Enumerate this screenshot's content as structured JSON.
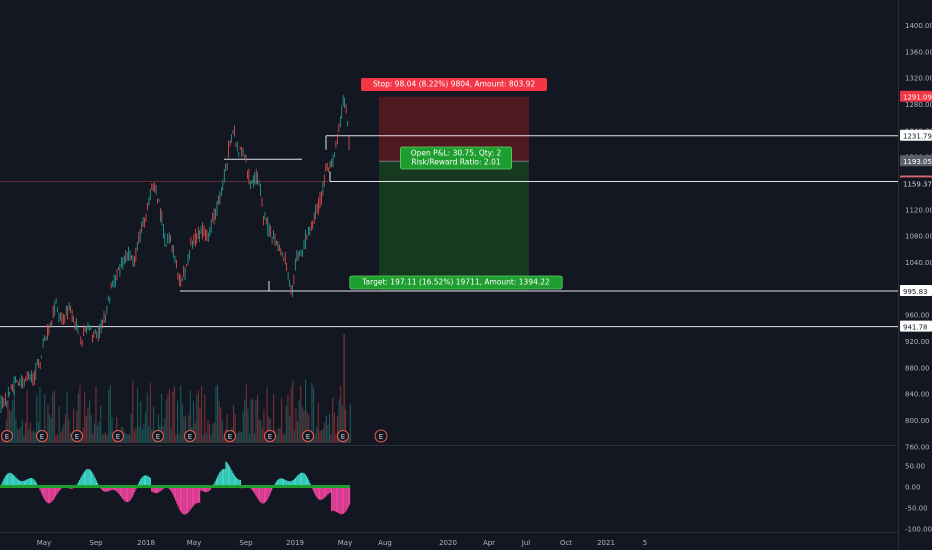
{
  "colors": {
    "background": "#131722",
    "axis_text": "#b2b5be",
    "up": "#26a69a",
    "down": "#ef5350",
    "price_line": "#e0e3eb",
    "stop_zone": "#5c1a1e",
    "target_zone": "#17401f",
    "stop_label": "#f23645",
    "target_label": "#1e9e2e",
    "osc_up": "#3bd6c6",
    "osc_down": "#e9439c",
    "osc_zero": "#1e9e2e",
    "earnings_marker": "#e35e56"
  },
  "chart_data": [
    {
      "type": "candlestick",
      "panel": "price",
      "y_axis_ticks": [
        1400,
        1360,
        1320,
        1280,
        1240,
        1200,
        1160,
        1120,
        1080,
        1040,
        1000,
        960,
        920,
        880,
        840,
        800,
        760
      ],
      "ylim": [
        740,
        1425
      ],
      "x_axis_labels": [
        "May",
        "Sep",
        "2018",
        "May",
        "Sep",
        "2019",
        "May",
        "Aug",
        "2020",
        "Apr",
        "Jul",
        "Oct",
        "2021",
        "5"
      ],
      "price_series": [
        [
          0,
          820
        ],
        [
          6,
          830
        ],
        [
          12,
          850
        ],
        [
          18,
          860
        ],
        [
          26,
          856
        ],
        [
          34,
          868
        ],
        [
          40,
          886
        ],
        [
          44,
          920
        ],
        [
          50,
          945
        ],
        [
          56,
          978
        ],
        [
          62,
          950
        ],
        [
          68,
          970
        ],
        [
          72,
          962
        ],
        [
          78,
          935
        ],
        [
          82,
          925
        ],
        [
          88,
          942
        ],
        [
          94,
          926
        ],
        [
          100,
          938
        ],
        [
          104,
          950
        ],
        [
          110,
          992
        ],
        [
          116,
          1020
        ],
        [
          122,
          1035
        ],
        [
          128,
          1052
        ],
        [
          134,
          1040
        ],
        [
          140,
          1080
        ],
        [
          146,
          1110
        ],
        [
          152,
          1148
        ],
        [
          156,
          1155
        ],
        [
          160,
          1120
        ],
        [
          166,
          1066
        ],
        [
          170,
          1078
        ],
        [
          176,
          1040
        ],
        [
          180,
          1005
        ],
        [
          186,
          1032
        ],
        [
          192,
          1070
        ],
        [
          198,
          1080
        ],
        [
          204,
          1092
        ],
        [
          208,
          1080
        ],
        [
          214,
          1106
        ],
        [
          220,
          1140
        ],
        [
          226,
          1176
        ],
        [
          230,
          1228
        ],
        [
          234,
          1238
        ],
        [
          238,
          1200
        ],
        [
          242,
          1212
        ],
        [
          246,
          1192
        ],
        [
          250,
          1160
        ],
        [
          256,
          1172
        ],
        [
          260,
          1150
        ],
        [
          264,
          1105
        ],
        [
          270,
          1085
        ],
        [
          276,
          1075
        ],
        [
          280,
          1060
        ],
        [
          286,
          1040
        ],
        [
          290,
          1000
        ],
        [
          292,
          993
        ],
        [
          296,
          1040
        ],
        [
          302,
          1058
        ],
        [
          308,
          1085
        ],
        [
          314,
          1105
        ],
        [
          318,
          1125
        ],
        [
          322,
          1140
        ],
        [
          326,
          1190
        ],
        [
          330,
          1180
        ],
        [
          334,
          1200
        ],
        [
          338,
          1230
        ],
        [
          342,
          1268
        ],
        [
          344,
          1288
        ],
        [
          346,
          1270
        ],
        [
          348,
          1245
        ],
        [
          350,
          1198
        ]
      ],
      "open_position": {
        "entry_price": 1193.05,
        "stop_price": 1291.09,
        "target_price": 995.94,
        "stop_label": "Stop: 98.04 (8.22%) 9804, Amount: 803.92",
        "target_label": "Target: 197.11 (16.52%) 19711, Amount: 1394.22",
        "pnl_label_line1": "Open P&L: 30.75, Qty: 2",
        "pnl_label_line2": "Risk/Reward Ratio: 2.01"
      },
      "horizontal_levels": [
        1231.79,
        1162.3,
        995.94,
        941.78
      ],
      "price_axis_labels": [
        {
          "text": "1291.09",
          "value": 1291.09,
          "style": "stop"
        },
        {
          "text": "1231.79",
          "value": 1231.79,
          "style": "outline"
        },
        {
          "text": "1193.05",
          "value": 1193.05,
          "style": "entry"
        },
        {
          "text": "1162.30",
          "value": 1162.3,
          "style": "last"
        },
        {
          "text": "1159.37",
          "value": 1159.37,
          "style": "plain"
        },
        {
          "text": "995.94",
          "value": 995.94,
          "style": "target"
        },
        {
          "text": "995.83",
          "value": 995.83,
          "style": "outline"
        },
        {
          "text": "941.78",
          "value": 941.78,
          "style": "outline"
        }
      ],
      "earnings_marker_label": "E",
      "earnings_marker_count": 12,
      "future_earnings_marker_count": 1
    },
    {
      "type": "histogram",
      "panel": "oscillator",
      "y_axis_ticks": [
        50,
        0,
        -50,
        -100
      ],
      "ylim": [
        -108,
        75
      ]
    }
  ]
}
